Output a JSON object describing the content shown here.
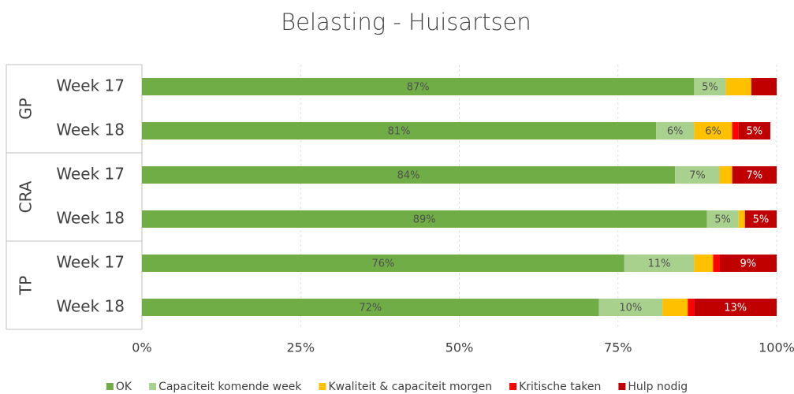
{
  "chart_data": {
    "type": "stacked-bar-horizontal",
    "title": "Belasting - Huisartsen",
    "groups": [
      {
        "name": "GP",
        "categories": [
          "Week 17",
          "Week 18"
        ]
      },
      {
        "name": "CRA",
        "categories": [
          "Week 17",
          "Week 18"
        ]
      },
      {
        "name": "TP",
        "categories": [
          "Week 17",
          "Week 18"
        ]
      }
    ],
    "series": [
      {
        "name": "OK",
        "color": "#70ad47",
        "values": [
          87,
          81,
          84,
          89,
          76,
          72
        ],
        "value_labels": [
          "87%",
          "81%",
          "84%",
          "89%",
          "76%",
          "72%"
        ]
      },
      {
        "name": "Capaciteit komende week",
        "color": "#a9d18e",
        "values": [
          5,
          6,
          7,
          5,
          11,
          10
        ],
        "value_labels": [
          "5%",
          "6%",
          "7%",
          "5%",
          "11%",
          "10%"
        ]
      },
      {
        "name": "Kwaliteit & capaciteit morgen",
        "color": "#ffc000",
        "values": [
          4,
          6,
          2,
          1,
          3,
          4
        ],
        "value_labels": [
          null,
          "6%",
          null,
          null,
          null,
          null
        ]
      },
      {
        "name": "Kritische taken",
        "color": "#ff0000",
        "values": [
          0,
          1,
          0,
          0,
          1,
          1
        ],
        "value_labels": [
          null,
          null,
          null,
          null,
          null,
          null
        ]
      },
      {
        "name": "Hulp nodig",
        "color": "#c00000",
        "values": [
          4,
          5,
          7,
          5,
          9,
          13
        ],
        "value_labels": [
          null,
          "5%",
          "7%",
          "5%",
          "9%",
          "13%"
        ]
      }
    ],
    "xlim": [
      0,
      100
    ],
    "xticks": [
      {
        "value": 0,
        "label": "0%"
      },
      {
        "value": 25,
        "label": "25%"
      },
      {
        "value": 50,
        "label": "50%"
      },
      {
        "value": 75,
        "label": "75%"
      },
      {
        "value": 100,
        "label": "100%"
      }
    ],
    "grid": true,
    "legend": "bottom"
  }
}
